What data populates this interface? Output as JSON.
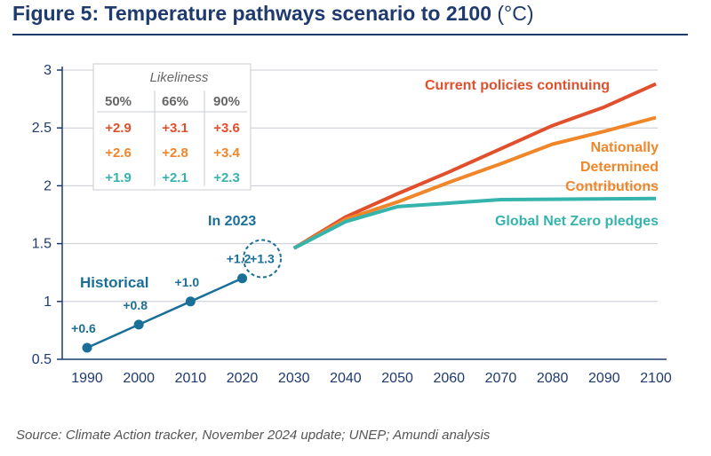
{
  "header": {
    "title": "Figure 5: Temperature pathways scenario to 2100",
    "unit": "(°C)"
  },
  "footer": {
    "source": "Source: Climate Action tracker, November 2024 update; UNEP; Amundi analysis"
  },
  "colors": {
    "navy": "#1f3a6e",
    "historical": "#1a6f99",
    "current": "#e0502d",
    "ndc": "#f0862a",
    "netzero": "#35b3ad",
    "grid": "#c8ccd4"
  },
  "chart_data": {
    "type": "line",
    "title": "Figure 5: Temperature pathways scenario to 2100",
    "ylabel": "(°C)",
    "xlim": [
      1990,
      2100
    ],
    "ylim": [
      0.5,
      3
    ],
    "x_ticks": [
      1990,
      2000,
      2010,
      2020,
      2030,
      2040,
      2050,
      2060,
      2070,
      2080,
      2090,
      2100
    ],
    "y_ticks": [
      0.5,
      1,
      1.5,
      2,
      2.5,
      3
    ],
    "series": [
      {
        "name": "Historical",
        "key": "historical",
        "x": [
          1990,
          2000,
          2010,
          2020
        ],
        "y": [
          0.6,
          0.8,
          1.0,
          1.2
        ],
        "labels": [
          "+0.6",
          "+0.8",
          "+1.0",
          "+1.2"
        ],
        "markers": true
      },
      {
        "name": "Current policies continuing",
        "key": "current",
        "x": [
          2030,
          2040,
          2050,
          2060,
          2070,
          2080,
          2090,
          2100
        ],
        "y": [
          1.46,
          1.73,
          1.93,
          2.12,
          2.32,
          2.52,
          2.68,
          2.88
        ]
      },
      {
        "name": "Nationally Determined Contributions",
        "key": "ndc",
        "x": [
          2030,
          2040,
          2050,
          2060,
          2070,
          2080,
          2090,
          2100
        ],
        "y": [
          1.46,
          1.71,
          1.86,
          2.03,
          2.19,
          2.36,
          2.47,
          2.59
        ]
      },
      {
        "name": "Global Net Zero pledges",
        "key": "netzero",
        "x": [
          2030,
          2040,
          2050,
          2070,
          2100
        ],
        "y": [
          1.46,
          1.69,
          1.82,
          1.88,
          1.89
        ]
      }
    ],
    "highlight": {
      "label": "In 2023",
      "value": "+1.3",
      "x": 2023
    },
    "likeliness_table": {
      "title": "Likeliness",
      "headers": [
        "50%",
        "66%",
        "90%"
      ],
      "rows": [
        {
          "key": "current",
          "values": [
            "+2.9",
            "+3.1",
            "+3.6"
          ]
        },
        {
          "key": "ndc",
          "values": [
            "+2.6",
            "+2.8",
            "+3.4"
          ]
        },
        {
          "key": "netzero",
          "values": [
            "+1.9",
            "+2.1",
            "+2.3"
          ]
        }
      ]
    }
  }
}
